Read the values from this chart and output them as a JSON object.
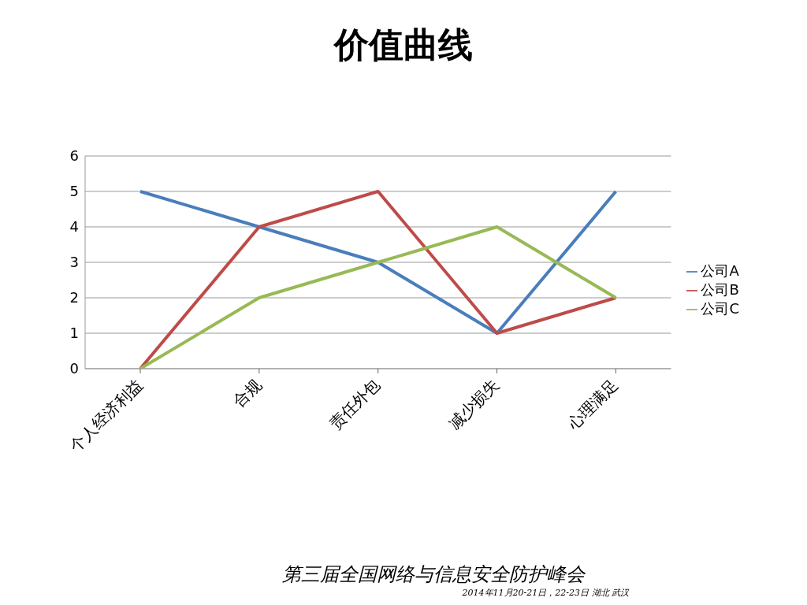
{
  "chart_data": {
    "type": "line",
    "title": "价值曲线",
    "categories": [
      "个人经济利益",
      "合规",
      "责任外包",
      "减少损失",
      "心理满足"
    ],
    "series": [
      {
        "name": "公司A",
        "color": "#4a7ebb",
        "values": [
          5,
          4,
          3,
          1,
          5
        ]
      },
      {
        "name": "公司B",
        "color": "#be4b48",
        "values": [
          0,
          4,
          5,
          1,
          2
        ]
      },
      {
        "name": "公司C",
        "color": "#98b954",
        "values": [
          0,
          2,
          3,
          4,
          2
        ]
      }
    ],
    "ylim": [
      0,
      6
    ],
    "yticks": [
      0,
      1,
      2,
      3,
      4,
      5,
      6
    ],
    "grid": "y",
    "legend": "right",
    "marker": "none",
    "line_style": "solid",
    "annotations": [
      "第三届全国网络与信息安全防护峰会",
      "2014年11月20-21日，22-23日 湖北 武汉"
    ]
  }
}
